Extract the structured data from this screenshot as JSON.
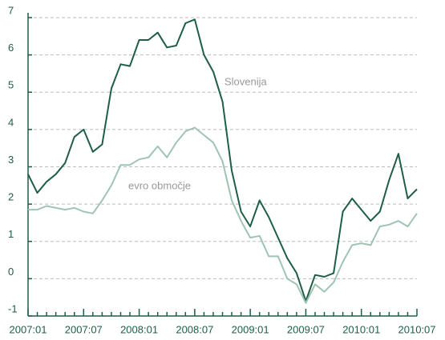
{
  "chart_data": {
    "type": "line",
    "categories": [
      "2007:01",
      null,
      null,
      null,
      null,
      null,
      "2007:07",
      null,
      null,
      null,
      null,
      null,
      "2008:01",
      null,
      null,
      null,
      null,
      null,
      "2008:07",
      null,
      null,
      null,
      null,
      null,
      "2009:01",
      null,
      null,
      null,
      null,
      null,
      "2009:07",
      null,
      null,
      null,
      null,
      null,
      "2010:01",
      null,
      null,
      null,
      null,
      null,
      "2010:07"
    ],
    "series": [
      {
        "name": "Slovenija",
        "color": "#1e5e45",
        "values": [
          2.8,
          2.3,
          2.6,
          2.8,
          3.1,
          3.8,
          4.0,
          3.4,
          3.6,
          5.1,
          5.75,
          5.7,
          6.4,
          6.4,
          6.6,
          6.2,
          6.25,
          6.85,
          6.95,
          6.0,
          5.55,
          4.75,
          2.9,
          1.8,
          1.4,
          2.1,
          1.65,
          1.1,
          0.55,
          0.15,
          -0.6,
          0.1,
          0.05,
          0.15,
          1.8,
          2.15,
          1.85,
          1.55,
          1.8,
          2.65,
          3.35,
          2.15,
          2.4
        ]
      },
      {
        "name": "evro območje",
        "color": "#9fc4b3",
        "values": [
          1.85,
          1.85,
          1.95,
          1.9,
          1.85,
          1.9,
          1.8,
          1.75,
          2.1,
          2.5,
          3.05,
          3.05,
          3.2,
          3.25,
          3.55,
          3.25,
          3.65,
          3.95,
          4.05,
          3.85,
          3.65,
          3.15,
          2.1,
          1.55,
          1.1,
          1.15,
          0.6,
          0.6,
          0.0,
          -0.15,
          -0.65,
          -0.15,
          -0.35,
          -0.1,
          0.45,
          0.9,
          0.95,
          0.9,
          1.4,
          1.45,
          1.55,
          1.4,
          1.75
        ]
      }
    ],
    "ylim": [
      -1,
      7
    ],
    "yticks": [
      -1,
      0,
      1,
      2,
      3,
      4,
      5,
      6,
      7
    ],
    "grid": true
  }
}
